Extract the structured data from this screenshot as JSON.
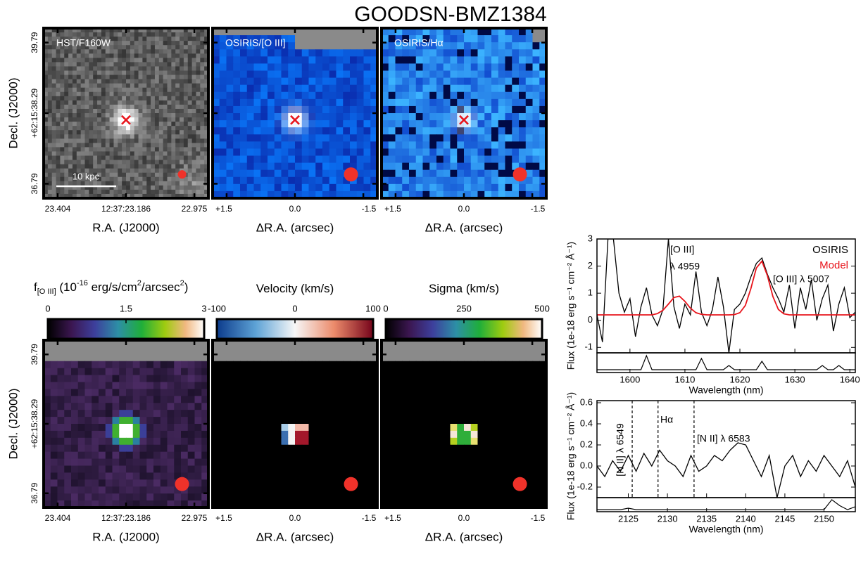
{
  "title": "GOODSN-BMZ1384",
  "image_panels": {
    "labels": [
      "HST/F160W",
      "OSIRIS/[O III]",
      "OSIRIS/Hα"
    ],
    "scale_bar": "10 kpc"
  },
  "axes": {
    "ylabel": "Decl. (J2000)",
    "dec_ticks": [
      "39.79",
      "+62:15:38.29",
      "36.79"
    ],
    "ra_ticks": [
      "23.404",
      "12:37:23.186",
      "22.975"
    ],
    "ra_label": "R.A. (J2000)",
    "offset_ticks": [
      "+1.5",
      "0.0",
      "-1.5"
    ],
    "offset_label": "ΔR.A. (arcsec)"
  },
  "colorbars": [
    {
      "title_parts": [
        {
          "text": "f"
        },
        {
          "text": "[O III]",
          "shift": "sub"
        },
        {
          "text": " (10"
        },
        {
          "text": "-16",
          "shift": "sup"
        },
        {
          "text": " erg/s/cm"
        },
        {
          "text": "2",
          "shift": "sup"
        },
        {
          "text": "/arcsec"
        },
        {
          "text": "2",
          "shift": "sup"
        },
        {
          "text": ")"
        }
      ],
      "lim": [
        0,
        3
      ],
      "ticks": [
        0,
        1.5,
        3
      ]
    },
    {
      "title_parts": [
        {
          "text": "Velocity (km/s)"
        }
      ],
      "lim": [
        -100,
        100
      ],
      "ticks": [
        -100,
        0,
        100
      ]
    },
    {
      "title_parts": [
        {
          "text": "Sigma (km/s)"
        }
      ],
      "lim": [
        0,
        500
      ],
      "ticks": [
        0,
        250,
        500
      ]
    }
  ],
  "chart_data": [
    {
      "type": "line",
      "xlabel": "Wavelength (nm)",
      "ylabel": "Flux (1e-18 erg s⁻¹ cm⁻² Å⁻¹)",
      "annotations": [
        "[O III]",
        "λ 4959",
        "[O III] λ 5007"
      ],
      "legend": "upper right",
      "x": [
        1594,
        1595,
        1596,
        1597,
        1598,
        1599,
        1600,
        1601,
        1602,
        1603,
        1604,
        1605,
        1606,
        1607,
        1608,
        1609,
        1610,
        1611,
        1612,
        1613,
        1614,
        1615,
        1616,
        1617,
        1618,
        1619,
        1620,
        1621,
        1622,
        1623,
        1624,
        1625,
        1626,
        1627,
        1628,
        1629,
        1630,
        1631,
        1632,
        1633,
        1634,
        1635,
        1636,
        1637,
        1638,
        1639,
        1640,
        1641
      ],
      "series": [
        {
          "name": "OSIRIS",
          "color": "#000000",
          "values": [
            0.2,
            -0.8,
            3.0,
            3.0,
            1.0,
            0.3,
            0.8,
            -0.6,
            0.5,
            1.2,
            0.2,
            -0.2,
            0.4,
            3.0,
            0.5,
            -0.3,
            0.6,
            0.2,
            1.8,
            0.3,
            -0.2,
            0.4,
            1.6,
            0.5,
            -1.2,
            0.4,
            0.6,
            1.0,
            1.6,
            2.1,
            2.3,
            1.7,
            1.2,
            0.8,
            0.3,
            1.3,
            -0.3,
            1.2,
            0.4,
            1.5,
            0.0,
            0.8,
            1.3,
            -0.4,
            0.6,
            1.2,
            0.1,
            0.3
          ]
        },
        {
          "name": "Model",
          "color": "#e8141b",
          "values": [
            0.2,
            0.2,
            0.2,
            0.2,
            0.2,
            0.2,
            0.2,
            0.2,
            0.2,
            0.2,
            0.2,
            0.25,
            0.37,
            0.6,
            0.84,
            0.89,
            0.7,
            0.45,
            0.28,
            0.22,
            0.2,
            0.2,
            0.2,
            0.2,
            0.2,
            0.21,
            0.28,
            0.55,
            1.17,
            1.93,
            2.18,
            1.65,
            0.88,
            0.4,
            0.24,
            0.2,
            0.2,
            0.2,
            0.2,
            0.2,
            0.2,
            0.2,
            0.2,
            0.2,
            0.2,
            0.2,
            0.2,
            0.2
          ]
        },
        {
          "color": "#000000",
          "panel": "sky",
          "values": [
            0,
            0,
            0,
            0,
            0,
            0,
            0,
            0,
            0,
            1.0,
            0,
            0,
            0,
            0,
            0,
            0,
            0,
            0,
            0,
            0.8,
            0,
            0,
            0,
            0,
            0.3,
            0,
            0,
            0,
            0,
            0,
            0.6,
            0,
            0,
            0,
            0,
            0,
            0,
            0,
            0,
            0,
            0,
            0.3,
            0,
            0,
            0.3,
            0,
            0,
            0
          ]
        }
      ],
      "xlim": [
        1594,
        1641
      ],
      "xticks": [
        1600,
        1610,
        1620,
        1630,
        1640
      ],
      "ylim": [
        -1.2,
        3
      ],
      "yticks": [
        -1,
        0,
        1,
        2,
        3
      ],
      "sky_ylim": [
        -0.2,
        1.2
      ]
    },
    {
      "type": "line",
      "xlabel": "Wavelength (nm)",
      "ylabel": "Flux (1e-18 erg s⁻¹ cm⁻² Å⁻¹)",
      "lines": [
        {
          "x": 2125.5,
          "label": "[N II] λ 6549"
        },
        {
          "x": 2128.8,
          "label": "Hα"
        },
        {
          "x": 2133.4,
          "label": "[N II] λ 6583"
        }
      ],
      "x": [
        2121,
        2122,
        2123,
        2124,
        2125,
        2126,
        2127,
        2128,
        2129,
        2130,
        2131,
        2132,
        2133,
        2134,
        2135,
        2136,
        2137,
        2138,
        2139,
        2140,
        2141,
        2142,
        2143,
        2144,
        2145,
        2146,
        2147,
        2148,
        2149,
        2150,
        2151,
        2152,
        2153,
        2154
      ],
      "series": [
        {
          "color": "#000000",
          "values": [
            0.0,
            -0.1,
            0.05,
            -0.05,
            0.1,
            -0.05,
            0.12,
            0.0,
            0.15,
            0.05,
            0.0,
            -0.1,
            0.1,
            -0.05,
            0.0,
            0.1,
            0.05,
            0.15,
            0.22,
            0.2,
            0.05,
            -0.1,
            0.1,
            -0.3,
            0.0,
            0.1,
            -0.1,
            0.05,
            -0.05,
            0.1,
            0.0,
            -0.1,
            0.05,
            -0.2
          ]
        },
        {
          "color": "#000000",
          "panel": "sky",
          "values": [
            0,
            0,
            0,
            0,
            0.15,
            0,
            0,
            0,
            0,
            0,
            0,
            0,
            0,
            0,
            0,
            0,
            0,
            0,
            0,
            0,
            0,
            0,
            0,
            0,
            0,
            0,
            0,
            0,
            0,
            0,
            1.0,
            0.4,
            0,
            0.3
          ]
        }
      ],
      "xlim": [
        2121,
        2154
      ],
      "xticks": [
        2125,
        2130,
        2135,
        2140,
        2145,
        2150
      ],
      "ylim": [
        -0.3,
        0.62
      ],
      "yticks": [
        -0.2,
        {
          "value": 0,
          "label": "0.0"
        },
        0.2,
        0.4,
        0.6
      ],
      "sky_ylim": [
        -0.2,
        1.2
      ]
    }
  ]
}
